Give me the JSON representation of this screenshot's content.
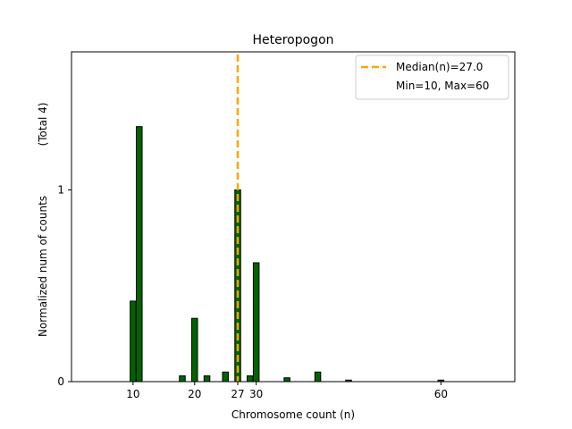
{
  "chart_data": {
    "type": "bar",
    "title": "Heteropogon",
    "xlabel": "Chromosome count (n)",
    "ylabel_main": "Normalized num of counts",
    "ylabel_total": "(Total 4)",
    "xlim": [
      0,
      72
    ],
    "ylim": [
      0,
      1.72
    ],
    "x_ticks": [
      {
        "value": 10,
        "label": "10"
      },
      {
        "value": 20,
        "label": "20"
      },
      {
        "value": 27,
        "label": "27"
      },
      {
        "value": 30,
        "label": "30"
      },
      {
        "value": 60,
        "label": "60"
      }
    ],
    "y_ticks": [
      {
        "value": 0,
        "label": "0"
      },
      {
        "value": 1,
        "label": "1"
      }
    ],
    "bars": [
      {
        "x": 10,
        "value": 0.42
      },
      {
        "x": 11,
        "value": 1.33
      },
      {
        "x": 18,
        "value": 0.03
      },
      {
        "x": 20,
        "value": 0.33
      },
      {
        "x": 22,
        "value": 0.03
      },
      {
        "x": 25,
        "value": 0.05
      },
      {
        "x": 27,
        "value": 1.0
      },
      {
        "x": 29,
        "value": 0.03
      },
      {
        "x": 30,
        "value": 0.62
      },
      {
        "x": 35,
        "value": 0.02
      },
      {
        "x": 40,
        "value": 0.05
      },
      {
        "x": 45,
        "value": 0.008
      },
      {
        "x": 60,
        "value": 0.008
      }
    ],
    "median": 27.0,
    "legend": {
      "position": "top-right",
      "entries": [
        "Median(n)=27.0",
        "Min=10, Max=60"
      ]
    },
    "colors": {
      "bar_fill": "#006400",
      "bar_edge": "#000000",
      "median_line": "#FFA500"
    }
  }
}
